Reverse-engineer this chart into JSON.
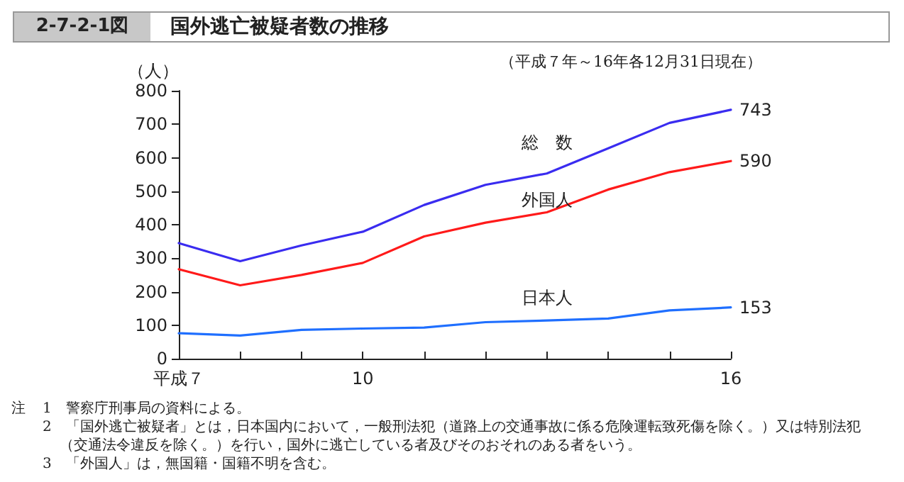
{
  "chart_data": {
    "type": "line",
    "title": "国外逃亡被疑者数の推移",
    "subtitle": "（平成７年～16年各12月31日現在）",
    "ylabel": "（人）",
    "x": [
      7,
      8,
      9,
      10,
      11,
      12,
      13,
      14,
      15,
      16
    ],
    "xlim": [
      7,
      16
    ],
    "xticks": [
      {
        "value": 7,
        "label": "平成７"
      },
      {
        "value": 8,
        "label": null
      },
      {
        "value": 9,
        "label": null
      },
      10,
      {
        "value": 11,
        "label": null
      },
      {
        "value": 12,
        "label": null
      },
      {
        "value": 13,
        "label": null
      },
      {
        "value": 14,
        "label": null
      },
      {
        "value": 15,
        "label": null
      },
      16
    ],
    "ylim": [
      0,
      800
    ],
    "yticks": [
      0,
      100,
      200,
      300,
      400,
      500,
      600,
      700,
      800
    ],
    "series": [
      {
        "name": "総　数",
        "color": "#3a2cf0",
        "values": [
          345,
          291,
          338,
          379,
          459,
          519,
          553,
          628,
          704,
          743
        ],
        "value_labels": [
          null,
          null,
          null,
          null,
          null,
          null,
          null,
          null,
          null,
          "743"
        ]
      },
      {
        "name": "外国人",
        "color": "#ff1a1a",
        "values": [
          267,
          219,
          250,
          286,
          365,
          406,
          437,
          505,
          557,
          590
        ],
        "value_labels": [
          null,
          null,
          null,
          null,
          null,
          null,
          null,
          null,
          null,
          "590"
        ]
      },
      {
        "name": "日本人",
        "color": "#1f6fff",
        "values": [
          76,
          69,
          86,
          90,
          93,
          109,
          114,
          120,
          144,
          153
        ],
        "value_labels": [
          null,
          null,
          null,
          null,
          null,
          null,
          null,
          null,
          null,
          "153"
        ]
      }
    ],
    "grid": false,
    "marker": "none",
    "line_style": "solid",
    "annotations": [
      "2-7-2-1図",
      "注",
      "1　警察庁刑事局の資料による。",
      "2　「国外逃亡被疑者」とは，日本国内において，一般刑法犯（道路上の交通事故に係る危険運転致死傷を除く。）又は特別法犯（交通法令違反を除く。）を行い，国外に逃亡している者及びそのおそれのある者をいう。",
      "3　「外国人」は，無国籍・国籍不明を含む。"
    ]
  }
}
